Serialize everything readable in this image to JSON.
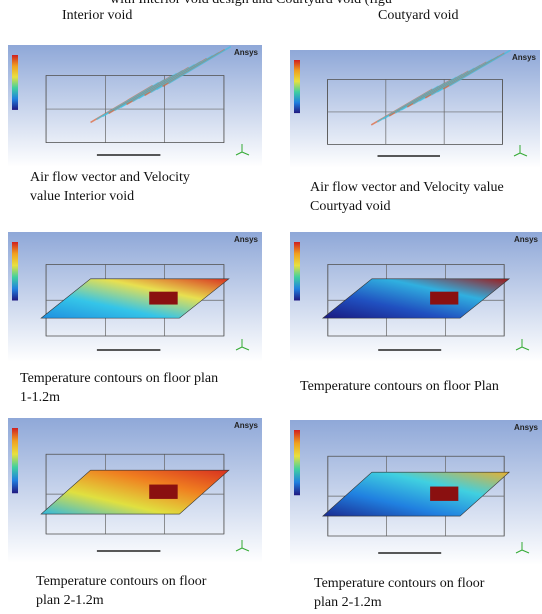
{
  "figure": {
    "top_line": "with Interior void design and Courtyard void (figu",
    "column_headers": [
      "Interior void",
      "Coutyard void"
    ],
    "panels": [
      {
        "logo": "Ansys",
        "caption": [
          "Air flow vector and Velocity",
          "value Interior void"
        ]
      },
      {
        "logo": "Ansys",
        "caption": [
          "Air flow vector and Velocity value",
          "Courtyad void"
        ]
      },
      {
        "logo": "Ansys",
        "caption": [
          "Temperature contours on floor plan",
          "1-1.2m"
        ]
      },
      {
        "logo": "Ansys",
        "caption": [
          "Temperature contours on floor Plan"
        ]
      },
      {
        "logo": "Ansys",
        "caption": [
          "Temperature contours on floor",
          "plan 2-1.2m"
        ]
      },
      {
        "logo": "Ansys",
        "caption": [
          "Temperature contours on floor",
          "plan 2-1.2m"
        ]
      }
    ]
  }
}
